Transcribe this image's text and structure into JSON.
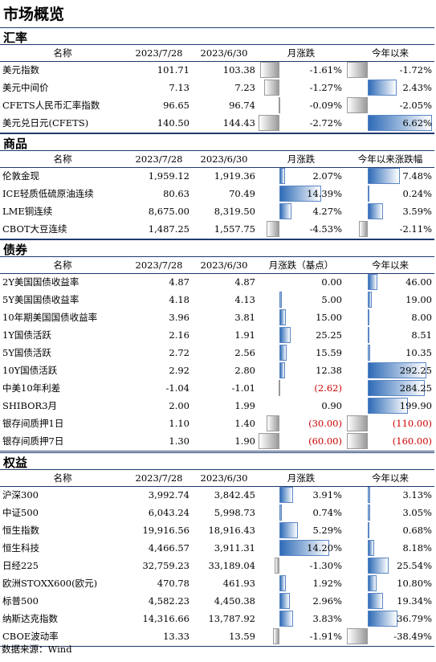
{
  "title": "市场概览",
  "source": "数据来源：Wind",
  "sections": [
    {
      "name": "汇率",
      "headers": [
        "名称",
        "2023/7/28",
        "2023/6/30",
        "月涨跌",
        "今年以来"
      ],
      "mscale": 15,
      "yscale": 15,
      "rows": [
        {
          "name": "美元指数",
          "a": "101.71",
          "b": "103.38",
          "m": "-1.61%",
          "mv": -1.61,
          "y": "-1.72%",
          "yv": -1.72
        },
        {
          "name": "美元中间价",
          "a": "7.13",
          "b": "7.23",
          "m": "-1.27%",
          "mv": -1.27,
          "y": "2.43%",
          "yv": 2.43
        },
        {
          "name": "CFETS人民币汇率指数",
          "a": "96.65",
          "b": "96.74",
          "m": "-0.09%",
          "mv": -0.09,
          "y": "-2.05%",
          "yv": -2.05
        },
        {
          "name": "美元兑日元(CFETS)",
          "a": "140.50",
          "b": "144.43",
          "m": "-2.72%",
          "mv": -2.72,
          "y": "6.62%",
          "yv": 6.62
        }
      ]
    },
    {
      "name": "商品",
      "headers": [
        "名称",
        "2023/7/28",
        "2023/6/30",
        "月涨跌",
        "今年以来涨跌幅"
      ],
      "mscale": 3.6,
      "yscale": 5.4,
      "rows": [
        {
          "name": "伦敦金现",
          "a": "1,959.12",
          "b": "1,919.36",
          "m": "2.07%",
          "mv": 2.07,
          "y": "7.48%",
          "yv": 7.48
        },
        {
          "name": "ICE轻质低硫原油连续",
          "a": "80.63",
          "b": "70.49",
          "m": "14.39%",
          "mv": 14.39,
          "y": "0.24%",
          "yv": 0.24
        },
        {
          "name": "LME铜连续",
          "a": "8,675.00",
          "b": "8,319.50",
          "m": "4.27%",
          "mv": 4.27,
          "y": "3.59%",
          "yv": 3.59
        },
        {
          "name": "CBOT大豆连续",
          "a": "1,487.25",
          "b": "1,557.75",
          "m": "-4.53%",
          "mv": -4.53,
          "y": "-2.11%",
          "yv": -2.11
        }
      ]
    },
    {
      "name": "债券",
      "headers": [
        "名称",
        "2023/7/28",
        "2023/6/30",
        "月涨跌（基点）",
        "今年以来"
      ],
      "mscale": 0.55,
      "yscale": 0.25,
      "rows": [
        {
          "name": "2Y美国国债收益率",
          "a": "4.87",
          "b": "4.87",
          "m": "0.00",
          "mv": 0.0,
          "y": "46.00",
          "yv": 46.0
        },
        {
          "name": "5Y美国国债收益率",
          "a": "4.18",
          "b": "4.13",
          "m": "5.00",
          "mv": 5.0,
          "y": "19.00",
          "yv": 19.0
        },
        {
          "name": "10年期美国国债收益率",
          "a": "3.96",
          "b": "3.81",
          "m": "15.00",
          "mv": 15.0,
          "y": "8.00",
          "yv": 8.0
        },
        {
          "name": "1Y国债活跃",
          "a": "2.16",
          "b": "1.91",
          "m": "25.25",
          "mv": 25.25,
          "y": "8.51",
          "yv": 8.51
        },
        {
          "name": "5Y国债活跃",
          "a": "2.72",
          "b": "2.56",
          "m": "15.59",
          "mv": 15.59,
          "y": "10.35",
          "yv": 10.35
        },
        {
          "name": "10Y国债活跃",
          "a": "2.92",
          "b": "2.80",
          "m": "12.38",
          "mv": 12.38,
          "y": "292.25",
          "yv": 292.25
        },
        {
          "name": "中美10年利差",
          "a": "-1.04",
          "b": "-1.01",
          "m": "(2.62)",
          "mv": -2.62,
          "y": "284.25",
          "yv": 284.25
        },
        {
          "name": "SHIBOR3月",
          "a": "2.00",
          "b": "1.99",
          "m": "0.90",
          "mv": 0.9,
          "y": "199.90",
          "yv": 199.9
        },
        {
          "name": "银存间质押1日",
          "a": "1.10",
          "b": "1.40",
          "m": "(30.00)",
          "mv": -30.0,
          "y": "(110.00)",
          "yv": -110.0
        },
        {
          "name": "银存间质押7日",
          "a": "1.30",
          "b": "1.90",
          "m": "(60.00)",
          "mv": -60.0,
          "y": "(160.00)",
          "yv": -160.0
        }
      ]
    },
    {
      "name": "权益",
      "headers": [
        "名称",
        "2023/7/28",
        "2023/6/30",
        "月涨跌",
        "今年以来"
      ],
      "mscale": 4.4,
      "yscale": 1.0,
      "rows": [
        {
          "name": "沪深300",
          "a": "3,992.74",
          "b": "3,842.45",
          "m": "3.91%",
          "mv": 3.91,
          "y": "3.13%",
          "yv": 3.13
        },
        {
          "name": "中证500",
          "a": "6,043.24",
          "b": "5,998.73",
          "m": "0.74%",
          "mv": 0.74,
          "y": "3.05%",
          "yv": 3.05
        },
        {
          "name": "恒生指数",
          "a": "19,916.56",
          "b": "18,916.43",
          "m": "5.29%",
          "mv": 5.29,
          "y": "0.68%",
          "yv": 0.68
        },
        {
          "name": "恒生科技",
          "a": "4,466.57",
          "b": "3,911.31",
          "m": "14.20%",
          "mv": 14.2,
          "y": "8.18%",
          "yv": 8.18
        },
        {
          "name": "日经225",
          "a": "32,759.23",
          "b": "33,189.04",
          "m": "-1.30%",
          "mv": -1.3,
          "y": "25.54%",
          "yv": 25.54
        },
        {
          "name": "欧洲STOXX600(欧元)",
          "a": "470.78",
          "b": "461.93",
          "m": "1.92%",
          "mv": 1.92,
          "y": "10.80%",
          "yv": 10.8
        },
        {
          "name": "标普500",
          "a": "4,582.23",
          "b": "4,450.38",
          "m": "2.96%",
          "mv": 2.96,
          "y": "19.34%",
          "yv": 19.34
        },
        {
          "name": "纳斯达克指数",
          "a": "14,316.66",
          "b": "13,787.92",
          "m": "3.83%",
          "mv": 3.83,
          "y": "36.79%",
          "yv": 36.79
        },
        {
          "name": "CBOE波动率",
          "a": "13.33",
          "b": "13.59",
          "m": "-1.91%",
          "mv": -1.91,
          "y": "-38.49%",
          "yv": -38.49
        }
      ]
    }
  ]
}
